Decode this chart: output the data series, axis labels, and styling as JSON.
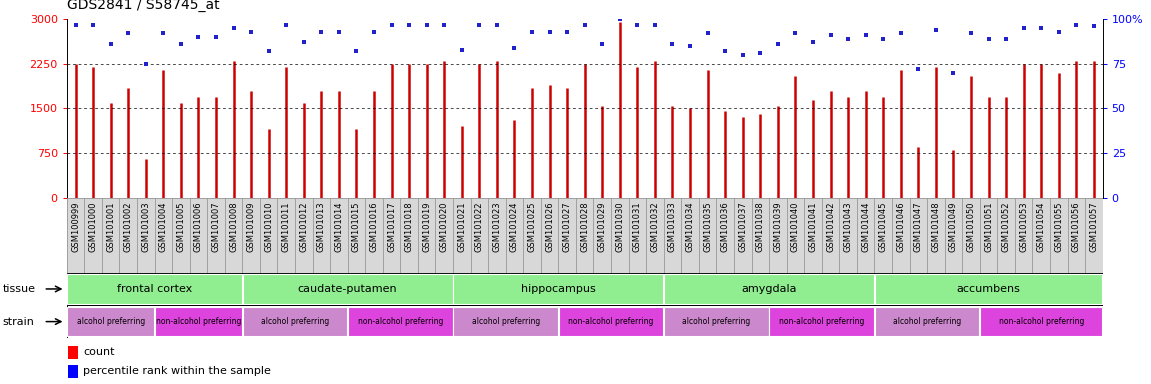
{
  "title": "GDS2841 / S58745_at",
  "samples": [
    "GSM100999",
    "GSM101000",
    "GSM101001",
    "GSM101002",
    "GSM101003",
    "GSM101004",
    "GSM101005",
    "GSM101006",
    "GSM101007",
    "GSM101008",
    "GSM101009",
    "GSM101010",
    "GSM101011",
    "GSM101012",
    "GSM101013",
    "GSM101014",
    "GSM101015",
    "GSM101016",
    "GSM101017",
    "GSM101018",
    "GSM101019",
    "GSM101020",
    "GSM101021",
    "GSM101022",
    "GSM101023",
    "GSM101024",
    "GSM101025",
    "GSM101026",
    "GSM101027",
    "GSM101028",
    "GSM101029",
    "GSM101030",
    "GSM101031",
    "GSM101032",
    "GSM101033",
    "GSM101034",
    "GSM101035",
    "GSM101036",
    "GSM101037",
    "GSM101038",
    "GSM101039",
    "GSM101040",
    "GSM101041",
    "GSM101042",
    "GSM101043",
    "GSM101044",
    "GSM101045",
    "GSM101046",
    "GSM101047",
    "GSM101048",
    "GSM101049",
    "GSM101050",
    "GSM101051",
    "GSM101052",
    "GSM101053",
    "GSM101054",
    "GSM101055",
    "GSM101056",
    "GSM101057"
  ],
  "counts": [
    2250,
    2200,
    1600,
    1850,
    650,
    2150,
    1600,
    1700,
    1700,
    2300,
    1800,
    1150,
    2200,
    1600,
    1800,
    1800,
    1150,
    1800,
    2250,
    2250,
    2250,
    2300,
    1200,
    2250,
    2300,
    1300,
    1850,
    1900,
    1850,
    2250,
    1550,
    2950,
    2200,
    2300,
    1550,
    1500,
    2150,
    1450,
    1350,
    1400,
    1550,
    2050,
    1650,
    1800,
    1700,
    1800,
    1700,
    2150,
    850,
    2200,
    800,
    2050,
    1700,
    1700,
    2250,
    2250,
    2100,
    2300,
    2300
  ],
  "percentiles": [
    97,
    97,
    86,
    92,
    75,
    92,
    86,
    90,
    90,
    95,
    93,
    82,
    97,
    87,
    93,
    93,
    82,
    93,
    97,
    97,
    97,
    97,
    83,
    97,
    97,
    84,
    93,
    93,
    93,
    97,
    86,
    100,
    97,
    97,
    86,
    85,
    92,
    82,
    80,
    81,
    86,
    92,
    87,
    91,
    89,
    91,
    89,
    92,
    72,
    94,
    70,
    92,
    89,
    89,
    95,
    95,
    93,
    97,
    96
  ],
  "tissues": [
    {
      "name": "frontal cortex",
      "start": 0,
      "end": 10
    },
    {
      "name": "caudate-putamen",
      "start": 10,
      "end": 22
    },
    {
      "name": "hippocampus",
      "start": 22,
      "end": 34
    },
    {
      "name": "amygdala",
      "start": 34,
      "end": 46
    },
    {
      "name": "accumbens",
      "start": 46,
      "end": 59
    }
  ],
  "strains": [
    {
      "name": "alcohol preferring",
      "start": 0,
      "end": 5,
      "type": "alcohol"
    },
    {
      "name": "non-alcohol preferring",
      "start": 5,
      "end": 10,
      "type": "non"
    },
    {
      "name": "alcohol preferring",
      "start": 10,
      "end": 16,
      "type": "alcohol"
    },
    {
      "name": "non-alcohol preferring",
      "start": 16,
      "end": 22,
      "type": "non"
    },
    {
      "name": "alcohol preferring",
      "start": 22,
      "end": 28,
      "type": "alcohol"
    },
    {
      "name": "non-alcohol preferring",
      "start": 28,
      "end": 34,
      "type": "non"
    },
    {
      "name": "alcohol preferring",
      "start": 34,
      "end": 40,
      "type": "alcohol"
    },
    {
      "name": "non-alcohol preferring",
      "start": 40,
      "end": 46,
      "type": "non"
    },
    {
      "name": "alcohol preferring",
      "start": 46,
      "end": 52,
      "type": "alcohol"
    },
    {
      "name": "non-alcohol preferring",
      "start": 52,
      "end": 59,
      "type": "non"
    }
  ],
  "bar_color": "#cc0000",
  "dot_color": "#2222cc",
  "tissue_color": "#90ee90",
  "alcohol_color": "#cc88cc",
  "non_alcohol_color": "#dd44dd",
  "tick_bg_color": "#d8d8d8",
  "ylim_left": [
    0,
    3000
  ],
  "ylim_right": [
    0,
    100
  ],
  "yticks_left": [
    0,
    750,
    1500,
    2250,
    3000
  ],
  "yticks_right": [
    0,
    25,
    50,
    75,
    100
  ],
  "title_fontsize": 10,
  "tick_fontsize": 6.0,
  "label_fontsize": 8.0,
  "strain_fontsize": 5.5
}
